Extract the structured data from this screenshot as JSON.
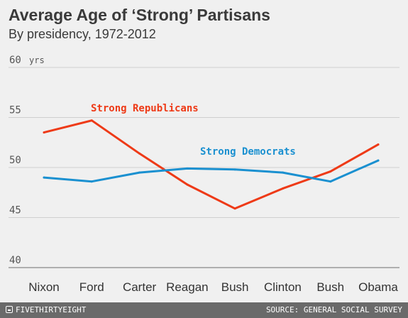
{
  "header": {
    "title": "Average Age of ‘Strong’ Partisans",
    "subtitle": "By presidency, 1972-2012"
  },
  "footer": {
    "brand": "FIVETHIRTYEIGHT",
    "source": "SOURCE: GENERAL SOCIAL SURVEY"
  },
  "colors": {
    "republicans": "#ee3a17",
    "democrats": "#1a90d0",
    "grid": "#cfcfcf",
    "baseline": "#888888"
  },
  "chart_data": {
    "type": "line",
    "title": "Average Age of ‘Strong’ Partisans",
    "subtitle": "By presidency, 1972-2012",
    "categories": [
      "Nixon",
      "Ford",
      "Carter",
      "Reagan",
      "Bush",
      "Clinton",
      "Bush",
      "Obama"
    ],
    "yunit": "yrs",
    "yticks": [
      40,
      45,
      50,
      55,
      60
    ],
    "ylim": [
      40,
      60
    ],
    "grid": true,
    "series": [
      {
        "name": "Strong Republicans",
        "color": "#ee3a17",
        "values": [
          53.5,
          54.7,
          51.4,
          48.3,
          45.9,
          47.9,
          49.6,
          52.3
        ]
      },
      {
        "name": "Strong Democrats",
        "color": "#1a90d0",
        "values": [
          49.0,
          48.6,
          49.5,
          49.9,
          49.8,
          49.5,
          48.6,
          50.7
        ]
      }
    ]
  }
}
